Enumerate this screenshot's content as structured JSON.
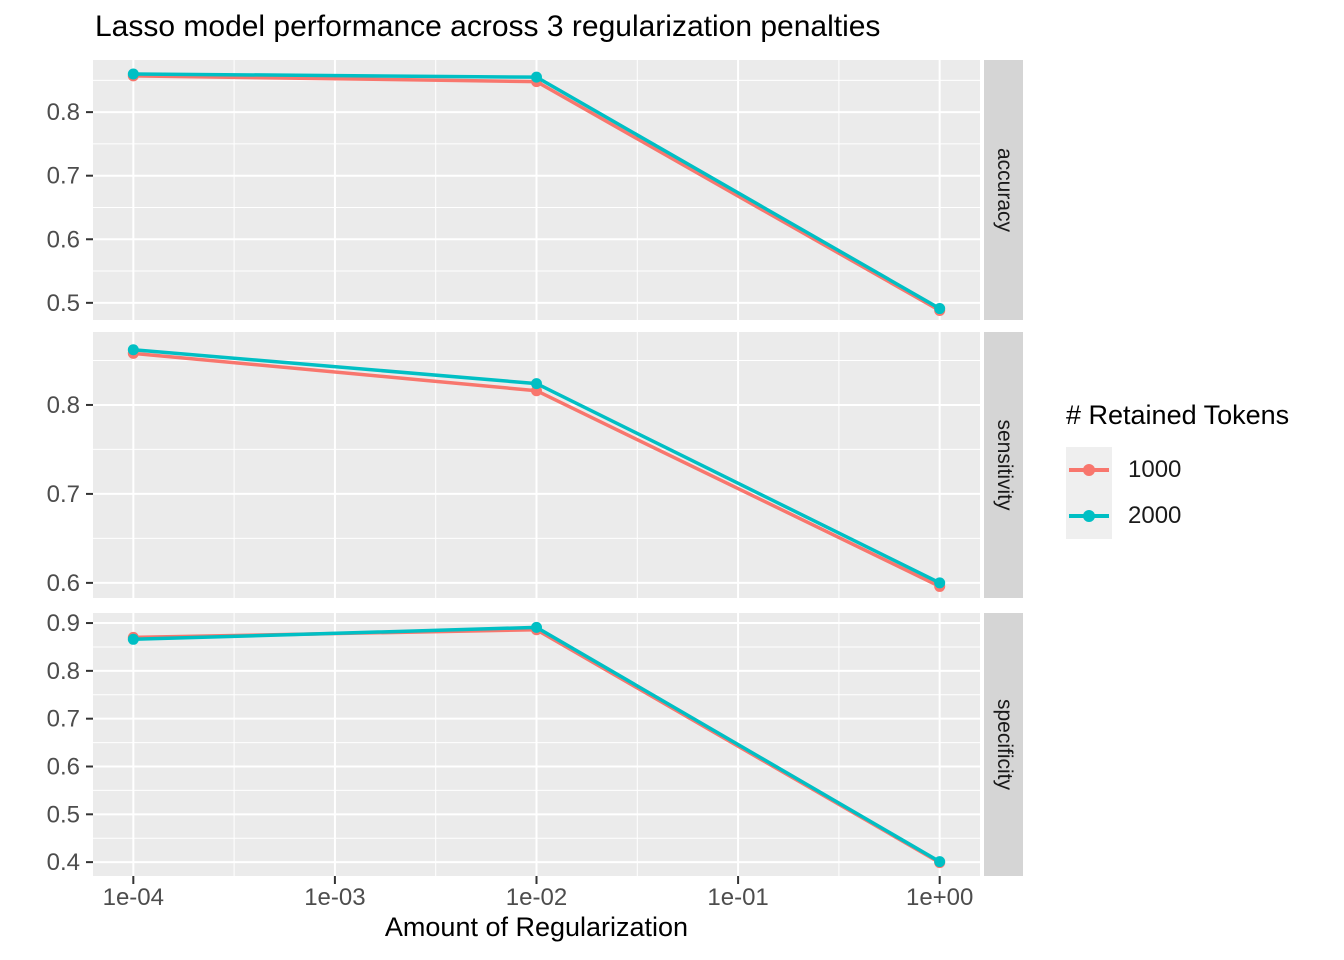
{
  "chart_data": {
    "type": "line",
    "title": "Lasso model performance across 3 regularization penalties",
    "xlabel": "Amount of Regularization",
    "x_scale": "log10",
    "x": [
      0.0001,
      0.01,
      1
    ],
    "x_ticks": [
      {
        "value": 0.0001,
        "label": "1e-04"
      },
      {
        "value": 0.001,
        "label": "1e-03"
      },
      {
        "value": 0.01,
        "label": "1e-02"
      },
      {
        "value": 0.1,
        "label": "1e-01"
      },
      {
        "value": 1,
        "label": "1e+00"
      }
    ],
    "xlim_log": [
      -4.2,
      0.2
    ],
    "grid": true,
    "legend_position": "right",
    "facets": [
      {
        "label": "accuracy",
        "ylim": [
          0.473,
          0.882
        ],
        "yticks": [
          0.5,
          0.6,
          0.7,
          0.8
        ],
        "series": [
          {
            "name": "1000",
            "values": [
              0.857,
              0.848,
              0.488
            ]
          },
          {
            "name": "2000",
            "values": [
              0.86,
              0.855,
              0.491
            ]
          }
        ]
      },
      {
        "label": "sensitivity",
        "ylim": [
          0.583,
          0.882
        ],
        "yticks": [
          0.6,
          0.7,
          0.8
        ],
        "series": [
          {
            "name": "1000",
            "values": [
              0.858,
              0.816,
              0.596
            ]
          },
          {
            "name": "2000",
            "values": [
              0.862,
              0.824,
              0.6
            ]
          }
        ]
      },
      {
        "label": "specificity",
        "ylim": [
          0.371,
          0.921
        ],
        "yticks": [
          0.4,
          0.5,
          0.6,
          0.7,
          0.8,
          0.9
        ],
        "series": [
          {
            "name": "1000",
            "values": [
              0.87,
              0.886,
              0.399
            ]
          },
          {
            "name": "2000",
            "values": [
              0.866,
              0.891,
              0.401
            ]
          }
        ]
      }
    ],
    "legend": {
      "title": "# Retained Tokens",
      "entries": [
        {
          "label": "1000",
          "color": "#F8766D"
        },
        {
          "label": "2000",
          "color": "#00BFC4"
        }
      ]
    },
    "theme": {
      "panel_bg": "#EBEBEB",
      "grid_color": "#FFFFFF",
      "strip_bg": "#D5D5D5",
      "strip_text_color": "#1a1a1a",
      "tick_label_color": "#4d4d4d",
      "tick_mark_color": "#333333"
    }
  }
}
